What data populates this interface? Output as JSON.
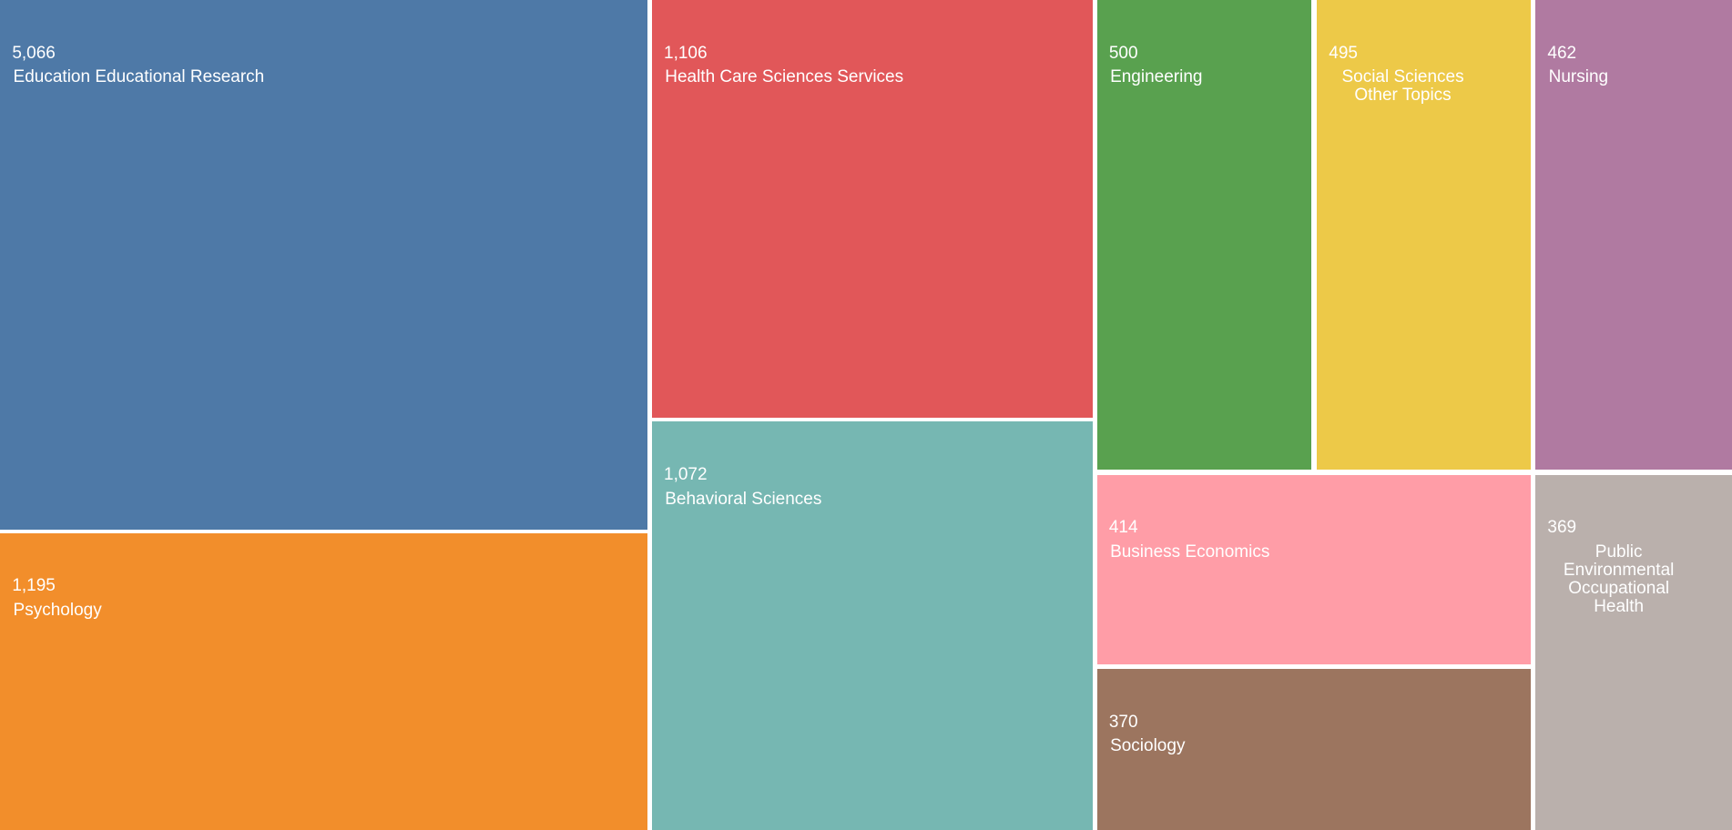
{
  "chart_data": {
    "type": "treemap",
    "categories": [
      "Education Educational Research",
      "Psychology",
      "Health Care Sciences Services",
      "Behavioral Sciences",
      "Engineering",
      "Social Sciences Other Topics",
      "Nursing",
      "Business Economics",
      "Sociology",
      "Public Environmental Occupational Health"
    ],
    "values": [
      5066,
      1195,
      1106,
      1072,
      500,
      495,
      462,
      414,
      370,
      369
    ],
    "value_labels": [
      "5,066",
      "1,195",
      "1,106",
      "1,072",
      "500",
      "495",
      "462",
      "414",
      "370",
      "369"
    ],
    "colors": [
      "#4e79a7",
      "#f28e2b",
      "#e15759",
      "#76b7b2",
      "#59a14f",
      "#edc948",
      "#b07aa1",
      "#ff9da7",
      "#9c755f",
      "#bab0ac"
    ]
  }
}
